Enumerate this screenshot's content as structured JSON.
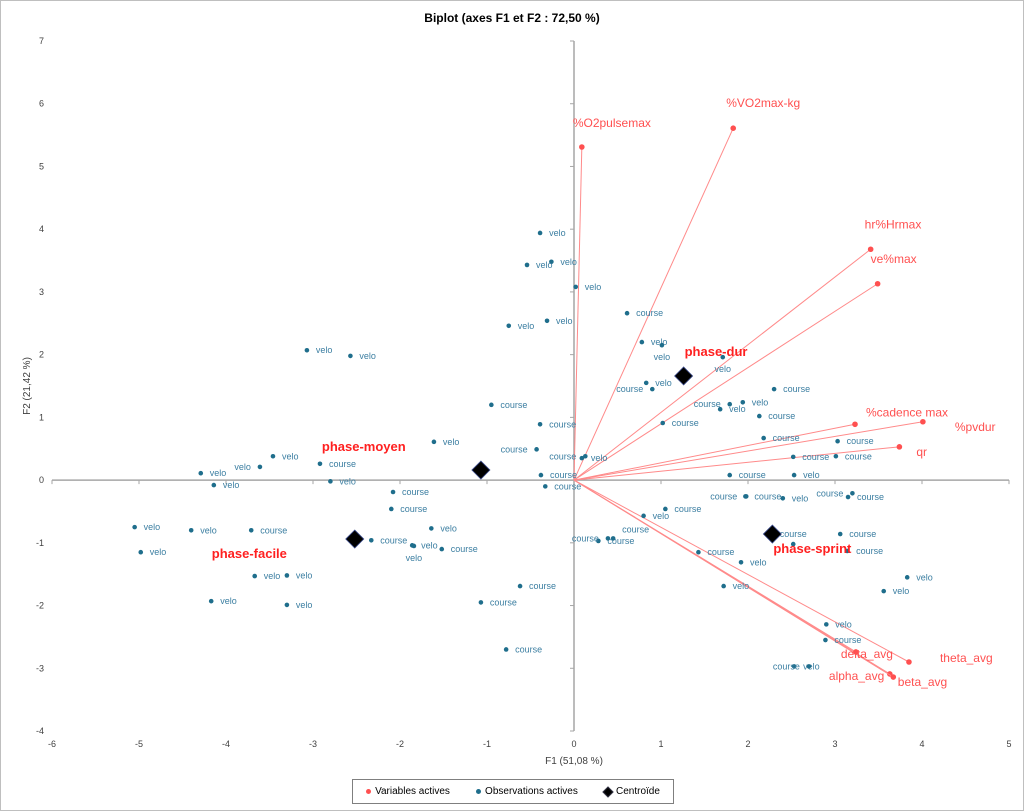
{
  "chart_data": {
    "type": "scatter",
    "title": "Biplot (axes F1 et F2 : 72,50 %)",
    "xlabel": "F1 (51,08 %)",
    "ylabel": "F2 (21,42 %)",
    "xlim": [
      -6,
      5
    ],
    "ylim": [
      -4,
      7
    ],
    "xticks": [
      -6,
      -5,
      -4,
      -3,
      -2,
      -1,
      0,
      1,
      2,
      3,
      4,
      5
    ],
    "yticks": [
      -4,
      -3,
      -2,
      -1,
      0,
      1,
      2,
      3,
      4,
      5,
      6,
      7
    ],
    "grid": false,
    "legend_position": "bottom",
    "legend": [
      "Variables actives",
      "Observations actives",
      "Centroïde"
    ],
    "colors": {
      "variables": "#ff5050",
      "variable_lines": "#ff8a8a",
      "observations": "#1f6e8c",
      "observation_labels": "#3b7ea1",
      "centroids": "#000000",
      "centroid_labels": "#ff2020"
    },
    "variables": [
      {
        "name": "%O2pulsemax",
        "x": 0.09,
        "y": 5.31
      },
      {
        "name": "%VO2max-kg",
        "x": 1.83,
        "y": 5.61
      },
      {
        "name": "hr%Hrmax",
        "x": 3.41,
        "y": 3.68
      },
      {
        "name": "ve%max",
        "x": 3.49,
        "y": 3.13
      },
      {
        "name": "%cadence max",
        "x": 3.23,
        "y": 0.89
      },
      {
        "name": "%pvdur",
        "x": 4.01,
        "y": 0.93
      },
      {
        "name": "qr",
        "x": 3.74,
        "y": 0.53
      },
      {
        "name": "theta_avg",
        "x": 3.85,
        "y": -2.9
      },
      {
        "name": "beta_avg",
        "x": 3.63,
        "y": -3.09
      },
      {
        "name": "alpha_avg",
        "x": 3.67,
        "y": -3.14
      },
      {
        "name": "delta_avg",
        "x": 3.24,
        "y": -2.74
      }
    ],
    "centroids": [
      {
        "name": "phase-dur",
        "x": 1.26,
        "y": 1.66
      },
      {
        "name": "phase-moyen",
        "x": -1.07,
        "y": 0.16
      },
      {
        "name": "phase-facile",
        "x": -2.52,
        "y": -0.94
      },
      {
        "name": "phase-sprint",
        "x": 2.28,
        "y": -0.86
      }
    ],
    "observations": [
      {
        "label": "velo",
        "x": -0.39,
        "y": 3.94
      },
      {
        "label": "velo",
        "x": -0.26,
        "y": 3.48
      },
      {
        "label": "velo",
        "x": -0.54,
        "y": 3.43
      },
      {
        "label": "velo",
        "x": 0.02,
        "y": 3.08
      },
      {
        "label": "velo",
        "x": -0.75,
        "y": 2.46
      },
      {
        "label": "velo",
        "x": -0.31,
        "y": 2.54
      },
      {
        "label": "course",
        "x": 0.61,
        "y": 2.66
      },
      {
        "label": "velo",
        "x": 0.78,
        "y": 2.2
      },
      {
        "label": "velo",
        "x": 1.01,
        "y": 2.15
      },
      {
        "label": "velo",
        "x": 1.71,
        "y": 1.96
      },
      {
        "label": "velo",
        "x": 0.83,
        "y": 1.55
      },
      {
        "label": "course",
        "x": 0.9,
        "y": 1.45
      },
      {
        "label": "course",
        "x": 2.3,
        "y": 1.45
      },
      {
        "label": "velo",
        "x": 1.94,
        "y": 1.24
      },
      {
        "label": "course",
        "x": 1.79,
        "y": 1.21
      },
      {
        "label": "velo",
        "x": 1.68,
        "y": 1.13
      },
      {
        "label": "course",
        "x": 2.13,
        "y": 1.02
      },
      {
        "label": "course",
        "x": 1.02,
        "y": 0.91
      },
      {
        "label": "course",
        "x": 2.18,
        "y": 0.67
      },
      {
        "label": "course",
        "x": 3.03,
        "y": 0.62
      },
      {
        "label": "course",
        "x": 2.52,
        "y": 0.37
      },
      {
        "label": "course",
        "x": 3.01,
        "y": 0.38
      },
      {
        "label": "course",
        "x": 1.79,
        "y": 0.08
      },
      {
        "label": "velo",
        "x": 2.53,
        "y": 0.08
      },
      {
        "label": "velo",
        "x": 0.09,
        "y": 0.35
      },
      {
        "label": "course",
        "x": 0.13,
        "y": 0.38
      },
      {
        "label": "course",
        "x": 1.97,
        "y": -0.26
      },
      {
        "label": "course",
        "x": 1.98,
        "y": -0.26
      },
      {
        "label": "velo",
        "x": 2.4,
        "y": -0.29
      },
      {
        "label": "course",
        "x": 3.15,
        "y": -0.27
      },
      {
        "label": "course",
        "x": 3.2,
        "y": -0.21
      },
      {
        "label": "course",
        "x": 1.05,
        "y": -0.46
      },
      {
        "label": "velo",
        "x": 0.8,
        "y": -0.57
      },
      {
        "label": "course",
        "x": 3.06,
        "y": -0.86
      },
      {
        "label": "course",
        "x": 2.52,
        "y": -1.02
      },
      {
        "label": "course",
        "x": 3.14,
        "y": -1.13
      },
      {
        "label": "course",
        "x": 1.43,
        "y": -1.15
      },
      {
        "label": "velo",
        "x": 1.92,
        "y": -1.31
      },
      {
        "label": "course",
        "x": 0.28,
        "y": -0.97
      },
      {
        "label": "course",
        "x": 0.39,
        "y": -0.93
      },
      {
        "label": "course",
        "x": 0.45,
        "y": -0.93
      },
      {
        "label": "velo",
        "x": 1.72,
        "y": -1.69
      },
      {
        "label": "velo",
        "x": 3.83,
        "y": -1.55
      },
      {
        "label": "velo",
        "x": 3.56,
        "y": -1.77
      },
      {
        "label": "velo",
        "x": 2.9,
        "y": -2.3
      },
      {
        "label": "course",
        "x": 2.89,
        "y": -2.55
      },
      {
        "label": "velo",
        "x": 2.53,
        "y": -2.97
      },
      {
        "label": "course",
        "x": 2.7,
        "y": -2.97
      },
      {
        "label": "velo",
        "x": -3.07,
        "y": 2.07
      },
      {
        "label": "velo",
        "x": -2.57,
        "y": 1.98
      },
      {
        "label": "course",
        "x": -0.95,
        "y": 1.2
      },
      {
        "label": "course",
        "x": -0.39,
        "y": 0.89
      },
      {
        "label": "velo",
        "x": -1.61,
        "y": 0.61
      },
      {
        "label": "course",
        "x": -0.43,
        "y": 0.49
      },
      {
        "label": "velo",
        "x": -3.46,
        "y": 0.38
      },
      {
        "label": "velo",
        "x": -3.61,
        "y": 0.21
      },
      {
        "label": "course",
        "x": -2.92,
        "y": 0.26
      },
      {
        "label": "velo",
        "x": -4.29,
        "y": 0.11
      },
      {
        "label": "velo",
        "x": -4.14,
        "y": -0.08
      },
      {
        "label": "velo",
        "x": -2.8,
        "y": -0.02
      },
      {
        "label": "course",
        "x": -0.38,
        "y": 0.08
      },
      {
        "label": "course",
        "x": -0.33,
        "y": -0.1
      },
      {
        "label": "course",
        "x": -2.08,
        "y": -0.19
      },
      {
        "label": "course",
        "x": -2.1,
        "y": -0.46
      },
      {
        "label": "velo",
        "x": -5.05,
        "y": -0.75
      },
      {
        "label": "velo",
        "x": -4.4,
        "y": -0.8
      },
      {
        "label": "course",
        "x": -3.71,
        "y": -0.8
      },
      {
        "label": "velo",
        "x": -1.64,
        "y": -0.77
      },
      {
        "label": "velo",
        "x": -4.98,
        "y": -1.15
      },
      {
        "label": "course",
        "x": -2.33,
        "y": -0.96
      },
      {
        "label": "velo",
        "x": -1.86,
        "y": -1.04
      },
      {
        "label": "velo",
        "x": -1.84,
        "y": -1.05
      },
      {
        "label": "course",
        "x": -1.52,
        "y": -1.1
      },
      {
        "label": "velo",
        "x": -3.67,
        "y": -1.53
      },
      {
        "label": "velo",
        "x": -3.3,
        "y": -1.52
      },
      {
        "label": "course",
        "x": -0.62,
        "y": -1.69
      },
      {
        "label": "velo",
        "x": -4.17,
        "y": -1.93
      },
      {
        "label": "velo",
        "x": -3.3,
        "y": -1.99
      },
      {
        "label": "course",
        "x": -1.07,
        "y": -1.95
      },
      {
        "label": "course",
        "x": -0.78,
        "y": -2.7
      }
    ]
  }
}
